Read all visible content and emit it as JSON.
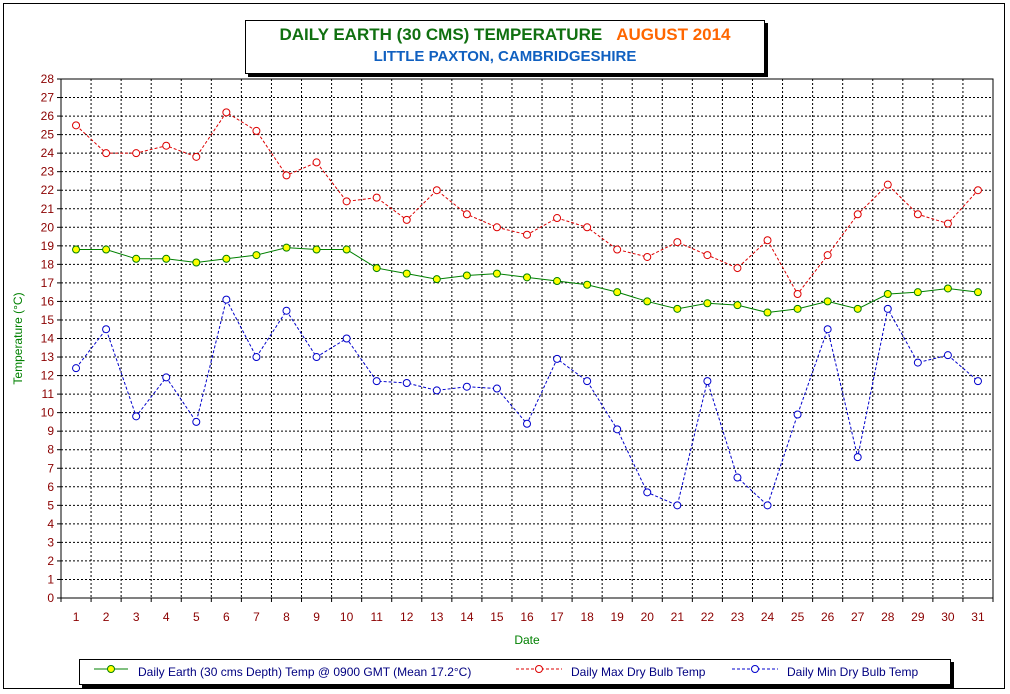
{
  "title": {
    "main": "DAILY EARTH (30 CMS) TEMPERATURE",
    "period": "AUGUST 2014",
    "subtitle": "LITTLE PAXTON, CAMBRIDGESHIRE"
  },
  "colors": {
    "earth": "#008000",
    "earth_marker": "#ffff00",
    "max": "#dd0000",
    "min": "#0000cc",
    "tick": "#8b0000",
    "axis_title": "#008000"
  },
  "chart_data": {
    "type": "line",
    "xlabel": "Date",
    "ylabel": "Temperature (°C)",
    "ylim": [
      0,
      28
    ],
    "ytick_step": 1,
    "grid": true,
    "legend_position": "bottom",
    "x": [
      1,
      2,
      3,
      4,
      5,
      6,
      7,
      8,
      9,
      10,
      11,
      12,
      13,
      14,
      15,
      16,
      17,
      18,
      19,
      20,
      21,
      22,
      23,
      24,
      25,
      26,
      27,
      28,
      29,
      30,
      31
    ],
    "series": [
      {
        "name": "Daily Earth (30 cms Depth) Temp @ 0900 GMT (Mean 17.2°C)",
        "style": "solid-green-yellow-markers",
        "values": [
          18.8,
          18.8,
          18.3,
          18.3,
          18.1,
          18.3,
          18.5,
          18.9,
          18.8,
          18.8,
          17.8,
          17.5,
          17.2,
          17.4,
          17.5,
          17.3,
          17.1,
          16.9,
          16.5,
          16.0,
          15.6,
          15.9,
          15.8,
          15.4,
          15.6,
          16.0,
          15.6,
          16.4,
          16.5,
          16.7,
          16.5
        ]
      },
      {
        "name": "Daily Max Dry Bulb Temp",
        "style": "dashed-red-open-markers",
        "values": [
          25.5,
          24.0,
          24.0,
          24.4,
          23.8,
          26.2,
          25.2,
          22.8,
          23.5,
          21.4,
          21.6,
          20.4,
          22.0,
          20.7,
          20.0,
          19.6,
          20.5,
          20.0,
          18.8,
          18.4,
          19.2,
          18.5,
          17.8,
          19.3,
          16.4,
          18.5,
          20.7,
          22.3,
          20.7,
          20.2,
          22.0
        ]
      },
      {
        "name": "Daily Min Dry Bulb Temp",
        "style": "dashed-blue-open-markers",
        "values": [
          12.4,
          14.5,
          9.8,
          11.9,
          9.5,
          16.1,
          13.0,
          15.5,
          13.0,
          14.0,
          11.7,
          11.6,
          11.2,
          11.4,
          11.3,
          9.4,
          12.9,
          11.7,
          9.1,
          5.7,
          5.0,
          11.7,
          6.5,
          5.0,
          9.9,
          14.5,
          7.6,
          15.6,
          12.7,
          13.1,
          11.7
        ]
      }
    ]
  }
}
